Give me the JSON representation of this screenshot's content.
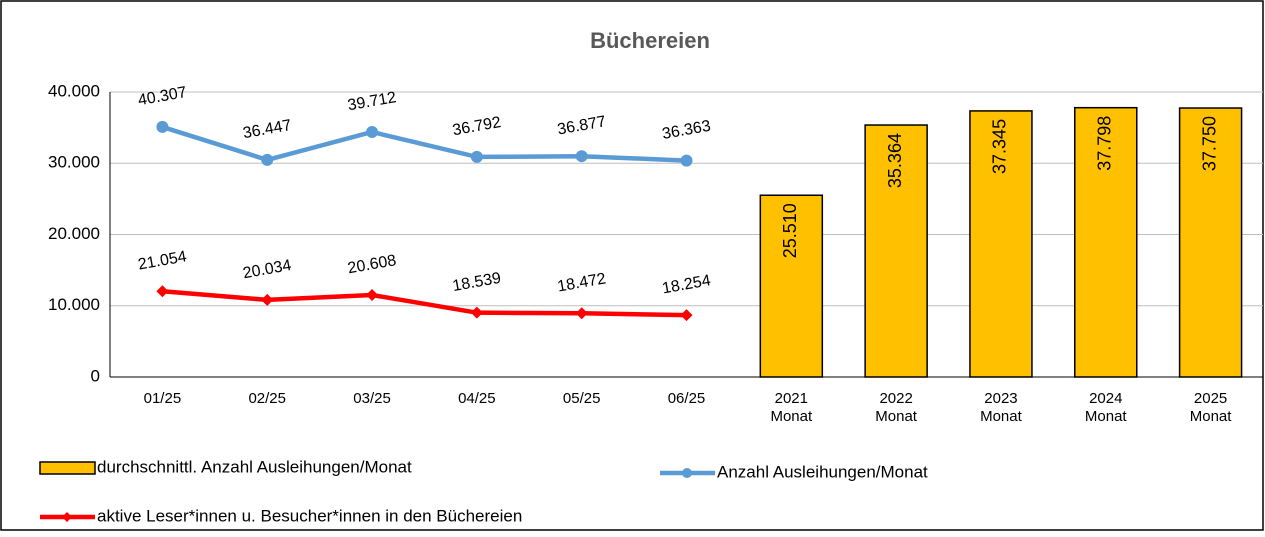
{
  "chart_data": {
    "type": "bar_line",
    "title": "Büchereien",
    "categories": [
      "01/25",
      "02/25",
      "03/25",
      "04/25",
      "05/25",
      "06/25",
      "2021 Monat",
      "2022 Monat",
      "2023 Monat",
      "2024 Monat",
      "2025 Monat"
    ],
    "ylim": [
      0,
      40000
    ],
    "yticks": [
      {
        "value": 0,
        "label": "0"
      },
      {
        "value": 10000,
        "label": "10.000"
      },
      {
        "value": 20000,
        "label": "20.000"
      },
      {
        "value": 30000,
        "label": "30.000"
      },
      {
        "value": 40000,
        "label": "40.000"
      }
    ],
    "y2lim": [
      11000,
      44400
    ],
    "grid": true,
    "series": [
      {
        "name": "durchschnittl. Anzahl Ausleihungen/Monat",
        "kind": "bar",
        "color": "#ffc000",
        "values": [
          null,
          null,
          null,
          null,
          null,
          null,
          25510,
          35364,
          37345,
          37798,
          37750
        ],
        "value_labels": [
          null,
          null,
          null,
          null,
          null,
          null,
          "25.510",
          "35.364",
          "37.345",
          "37.798",
          "37.750"
        ]
      },
      {
        "name": "Anzahl Ausleihungen/Monat",
        "kind": "line",
        "axis": "y2",
        "color": "#5b9bd5",
        "values": [
          40307,
          36447,
          39712,
          36792,
          36877,
          36363,
          null,
          null,
          null,
          null,
          null
        ],
        "value_labels": [
          "40.307",
          "36.447",
          "39.712",
          "36.792",
          "36.877",
          "36.363",
          null,
          null,
          null,
          null,
          null
        ]
      },
      {
        "name": "aktive Leser*innen u. Besucher*innen in den Büchereien",
        "kind": "line",
        "axis": "y2",
        "color": "#ff0000",
        "values": [
          21054,
          20034,
          20608,
          18539,
          18472,
          18254,
          null,
          null,
          null,
          null,
          null
        ],
        "value_labels": [
          "21.054",
          "20.034",
          "20.608",
          "18.539",
          "18.472",
          "18.254",
          null,
          null,
          null,
          null,
          null
        ]
      }
    ]
  }
}
